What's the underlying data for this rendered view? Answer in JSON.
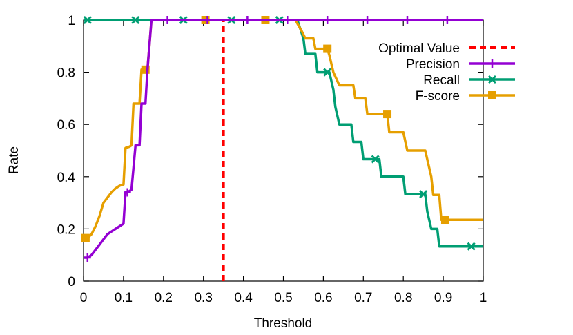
{
  "chart_data": {
    "type": "line",
    "title": "",
    "xlabel": "Threshold",
    "ylabel": "Rate",
    "xlim": [
      0,
      1
    ],
    "ylim": [
      0,
      1
    ],
    "grid": false,
    "legend_position": "top-right",
    "x_ticks": [
      "0",
      "0.1",
      "0.2",
      "0.3",
      "0.4",
      "0.5",
      "0.6",
      "0.7",
      "0.8",
      "0.9",
      "1"
    ],
    "y_ticks": [
      "0",
      "0.2",
      "0.4",
      "0.6",
      "0.8",
      "1"
    ],
    "optimal_value": {
      "name": "Optimal Value",
      "x": 0.35,
      "color": "#ff0000",
      "style": "dashed"
    },
    "series": [
      {
        "name": "Precision",
        "color": "#9400d3",
        "marker": "plus",
        "points": [
          [
            0.0,
            0.09
          ],
          [
            0.01,
            0.09
          ],
          [
            0.02,
            0.1
          ],
          [
            0.03,
            0.12
          ],
          [
            0.04,
            0.14
          ],
          [
            0.05,
            0.16
          ],
          [
            0.06,
            0.18
          ],
          [
            0.07,
            0.19
          ],
          [
            0.08,
            0.2
          ],
          [
            0.09,
            0.21
          ],
          [
            0.1,
            0.22
          ],
          [
            0.105,
            0.34
          ],
          [
            0.11,
            0.34
          ],
          [
            0.115,
            0.345
          ],
          [
            0.12,
            0.35
          ],
          [
            0.13,
            0.52
          ],
          [
            0.14,
            0.52
          ],
          [
            0.145,
            0.68
          ],
          [
            0.15,
            0.68
          ],
          [
            0.155,
            0.68
          ],
          [
            0.16,
            0.81
          ],
          [
            0.17,
            1.0
          ],
          [
            0.2,
            1.0
          ],
          [
            0.3,
            1.0
          ],
          [
            0.4,
            1.0
          ],
          [
            0.5,
            1.0
          ],
          [
            0.6,
            1.0
          ],
          [
            0.7,
            1.0
          ],
          [
            0.8,
            1.0
          ],
          [
            0.9,
            1.0
          ],
          [
            1.0,
            1.0
          ]
        ],
        "marker_x": [
          0.01,
          0.11,
          0.21,
          0.31,
          0.41,
          0.51,
          0.61,
          0.71,
          0.81,
          0.91
        ]
      },
      {
        "name": "Recall",
        "color": "#009e73",
        "marker": "x",
        "points": [
          [
            0.0,
            1.0
          ],
          [
            0.2,
            1.0
          ],
          [
            0.3,
            1.0
          ],
          [
            0.4,
            1.0
          ],
          [
            0.5,
            1.0
          ],
          [
            0.535,
            1.0
          ],
          [
            0.55,
            0.93
          ],
          [
            0.555,
            0.87
          ],
          [
            0.58,
            0.87
          ],
          [
            0.585,
            0.8
          ],
          [
            0.615,
            0.8
          ],
          [
            0.625,
            0.733
          ],
          [
            0.63,
            0.667
          ],
          [
            0.64,
            0.6
          ],
          [
            0.67,
            0.6
          ],
          [
            0.675,
            0.533
          ],
          [
            0.695,
            0.533
          ],
          [
            0.7,
            0.467
          ],
          [
            0.74,
            0.467
          ],
          [
            0.745,
            0.4
          ],
          [
            0.8,
            0.4
          ],
          [
            0.805,
            0.333
          ],
          [
            0.855,
            0.333
          ],
          [
            0.86,
            0.267
          ],
          [
            0.87,
            0.2
          ],
          [
            0.885,
            0.2
          ],
          [
            0.89,
            0.133
          ],
          [
            0.95,
            0.133
          ],
          [
            1.0,
            0.133
          ]
        ],
        "marker_x": [
          0.01,
          0.13,
          0.25,
          0.37,
          0.49,
          0.61,
          0.73,
          0.85,
          0.97
        ]
      },
      {
        "name": "F-score",
        "color": "#e69f00",
        "marker": "square",
        "points": [
          [
            0.0,
            0.165
          ],
          [
            0.01,
            0.165
          ],
          [
            0.02,
            0.18
          ],
          [
            0.03,
            0.21
          ],
          [
            0.04,
            0.25
          ],
          [
            0.05,
            0.3
          ],
          [
            0.06,
            0.32
          ],
          [
            0.07,
            0.34
          ],
          [
            0.08,
            0.355
          ],
          [
            0.09,
            0.365
          ],
          [
            0.1,
            0.37
          ],
          [
            0.105,
            0.51
          ],
          [
            0.115,
            0.515
          ],
          [
            0.12,
            0.52
          ],
          [
            0.125,
            0.68
          ],
          [
            0.14,
            0.68
          ],
          [
            0.145,
            0.81
          ],
          [
            0.16,
            0.81
          ],
          [
            0.17,
            1.0
          ],
          [
            0.3,
            1.0
          ],
          [
            0.4,
            1.0
          ],
          [
            0.53,
            1.0
          ],
          [
            0.545,
            0.96
          ],
          [
            0.555,
            0.93
          ],
          [
            0.575,
            0.93
          ],
          [
            0.58,
            0.89
          ],
          [
            0.61,
            0.89
          ],
          [
            0.615,
            0.865
          ],
          [
            0.625,
            0.8
          ],
          [
            0.64,
            0.75
          ],
          [
            0.675,
            0.75
          ],
          [
            0.68,
            0.7
          ],
          [
            0.705,
            0.7
          ],
          [
            0.71,
            0.64
          ],
          [
            0.76,
            0.64
          ],
          [
            0.765,
            0.57
          ],
          [
            0.8,
            0.57
          ],
          [
            0.81,
            0.5
          ],
          [
            0.855,
            0.5
          ],
          [
            0.87,
            0.4
          ],
          [
            0.875,
            0.33
          ],
          [
            0.89,
            0.33
          ],
          [
            0.895,
            0.235
          ],
          [
            0.95,
            0.235
          ],
          [
            1.0,
            0.235
          ]
        ],
        "marker_x": [
          0.005,
          0.155,
          0.305,
          0.455,
          0.61,
          0.76,
          0.905
        ]
      }
    ]
  }
}
